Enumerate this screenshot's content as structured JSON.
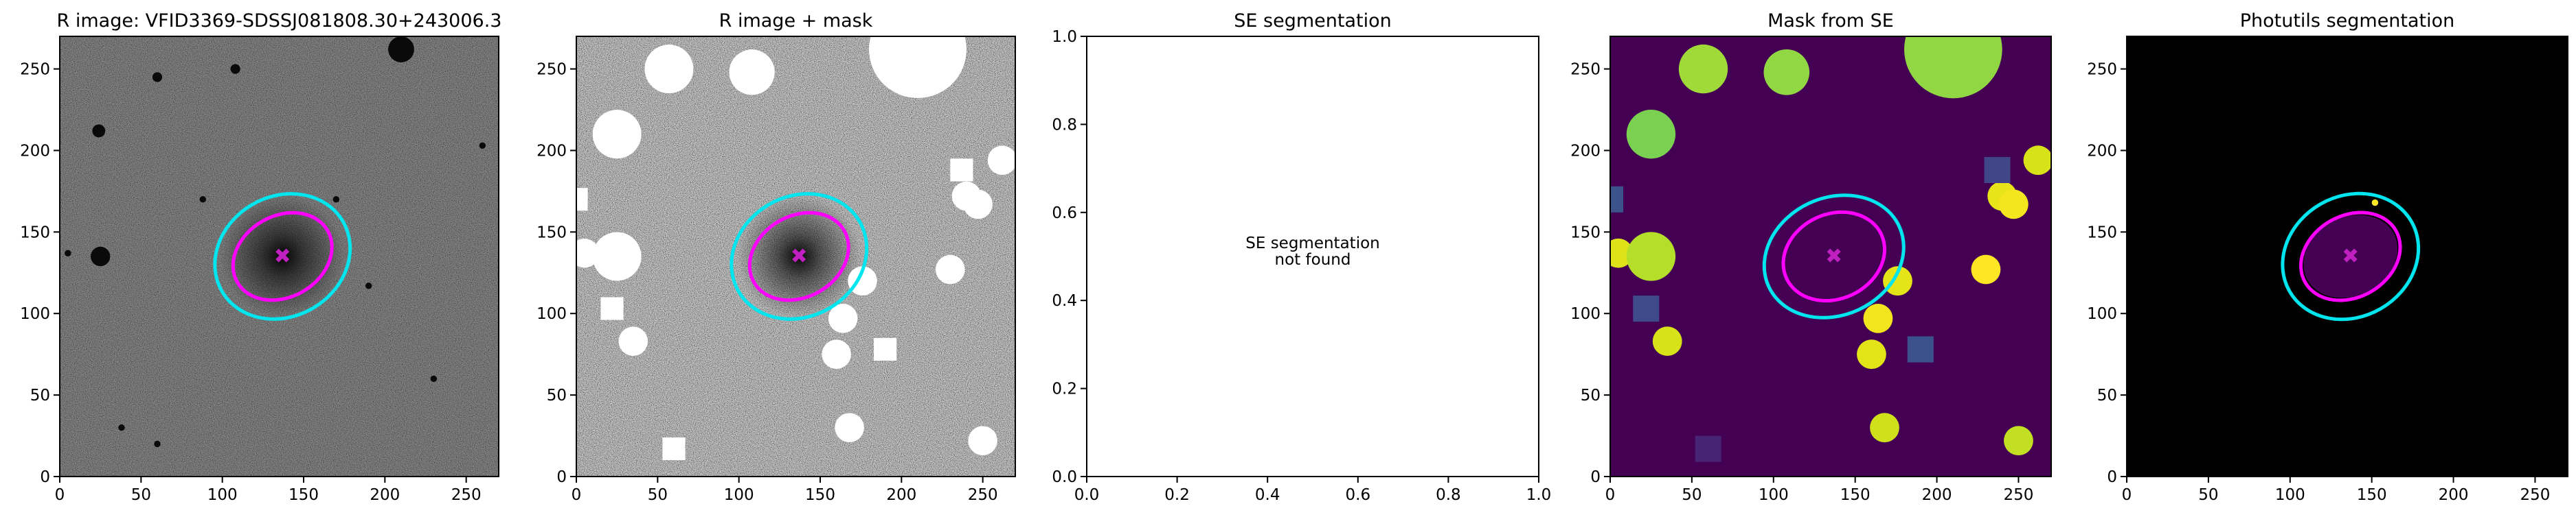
{
  "chart_data": [
    {
      "type": "image",
      "title": "R image: VFID3369-SDSSJ081808.30+243006.3",
      "xlim": [
        0,
        270
      ],
      "ylim": [
        0,
        270
      ],
      "xticks": [
        0,
        50,
        100,
        150,
        200,
        250
      ],
      "yticks": [
        0,
        50,
        100,
        150,
        200,
        250
      ]
    },
    {
      "type": "image",
      "title": "R image + mask",
      "xlim": [
        0,
        270
      ],
      "ylim": [
        0,
        270
      ],
      "xticks": [
        0,
        50,
        100,
        150,
        200,
        250
      ],
      "yticks": [
        0,
        50,
        100,
        150,
        200,
        250
      ]
    },
    {
      "type": "empty",
      "title": "SE segmentation",
      "annotation": [
        "SE segmentation",
        "not found"
      ],
      "xlim": [
        0,
        1
      ],
      "ylim": [
        0,
        1
      ],
      "xticks": [
        {
          "value": 0,
          "label": "0.0"
        },
        0.2,
        0.4,
        0.6,
        0.8,
        {
          "value": 1,
          "label": "1.0"
        }
      ],
      "yticks": [
        {
          "value": 0,
          "label": "0.0"
        },
        0.2,
        0.4,
        0.6,
        0.8,
        {
          "value": 1,
          "label": "1.0"
        }
      ]
    },
    {
      "type": "image",
      "title": "Mask from SE",
      "xlim": [
        0,
        270
      ],
      "ylim": [
        0,
        270
      ],
      "xticks": [
        0,
        50,
        100,
        150,
        200,
        250
      ],
      "yticks": [
        0,
        50,
        100,
        150,
        200,
        250
      ]
    },
    {
      "type": "image",
      "title": "Photutils segmentation",
      "xlim": [
        0,
        270
      ],
      "ylim": [
        0,
        270
      ],
      "xticks": [
        0,
        50,
        100,
        150,
        200,
        250
      ],
      "yticks": [
        0,
        50,
        100,
        150,
        200,
        250
      ]
    }
  ]
}
